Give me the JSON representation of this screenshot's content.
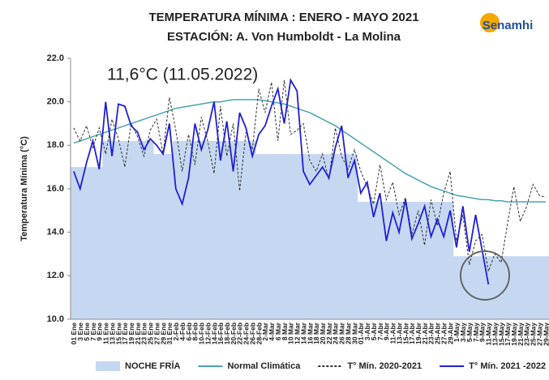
{
  "chart_data": {
    "type": "line",
    "title": "TEMPERATURA MÍNIMA : ENERO - MAYO 2021",
    "subtitle": "ESTACIÓN: A. Von Humboldt - La Molina",
    "y_label": "Temperatura Mínima (°C)",
    "annotation": "11,6°C (11.05.2022)",
    "logo": "Senamhi",
    "categories": [
      "01 Ene",
      "3 Ene",
      "5 Ene",
      "7 Ene",
      "9 Ene",
      "11 Ene",
      "13 Ene",
      "15 Ene",
      "17 Ene",
      "19 Ene",
      "21 Ene",
      "23 Ene",
      "25 Ene",
      "27 Ene",
      "29 Ene",
      "31 Ene",
      "2-Feb",
      "4-Feb",
      "6-Feb",
      "8-Feb",
      "10-Feb",
      "12-Feb",
      "14-Feb",
      "16-Feb",
      "18-Feb",
      "20-Feb",
      "22-Feb",
      "24-Feb",
      "26-Feb",
      "28-Feb",
      "2-Mar",
      "4-Mar",
      "6 Mar",
      "8 Mar",
      "10 Mar",
      "12 Mar",
      "14 Mar",
      "16 Mar",
      "18 Mar",
      "20 Mar",
      "22 Mar",
      "24 Mar",
      "26 Mar",
      "28 Mar",
      "30 Mar",
      "01-Abr",
      "3-Abr",
      "5-Abr",
      "7-Abr",
      "9-Abr",
      "11-Abr",
      "13-Abr",
      "15-Abr",
      "17-Abr",
      "19-Abr",
      "21-Abr",
      "23-Abr",
      "25-Abr",
      "27-Abr",
      "29-Abr",
      "1-May",
      "3-May",
      "5-May",
      "7-May",
      "9-May",
      "11-May",
      "13-May",
      "15-May",
      "17-May",
      "19-May",
      "21-May",
      "23-May",
      "25-May",
      "27-May",
      "29-May"
    ],
    "series": [
      {
        "name": "NOCHE FRÍA",
        "kind": "area",
        "color": "#c6d8f1",
        "values": [
          17.0,
          17.0,
          17.0,
          17.0,
          17.0,
          18.2,
          18.2,
          18.2,
          18.2,
          18.2,
          18.2,
          18.2,
          18.2,
          17.6,
          17.6,
          17.6,
          18.2,
          18.2,
          18.2,
          18.2,
          18.2,
          18.2,
          18.2,
          18.2,
          18.2,
          18.2,
          18.2,
          18.2,
          18.2,
          17.6,
          17.6,
          17.6,
          17.6,
          17.6,
          17.6,
          17.6,
          17.6,
          17.6,
          17.6,
          17.6,
          17.6,
          17.6,
          17.6,
          17.6,
          17.6,
          15.4,
          15.4,
          15.4,
          15.4,
          15.4,
          15.4,
          15.4,
          15.4,
          15.4,
          15.4,
          15.4,
          15.4,
          15.4,
          15.4,
          15.4,
          12.9,
          12.9,
          12.9,
          12.9,
          12.9,
          12.9,
          12.9,
          12.9,
          12.9,
          12.9,
          12.9,
          12.9,
          12.9,
          12.9,
          12.9
        ]
      },
      {
        "name": "Normal Climática",
        "kind": "line",
        "color": "#4aa3b3",
        "values": [
          18.1,
          18.2,
          18.3,
          18.4,
          18.5,
          18.6,
          18.7,
          18.8,
          18.9,
          19.0,
          19.1,
          19.2,
          19.3,
          19.4,
          19.5,
          19.6,
          19.7,
          19.75,
          19.8,
          19.85,
          19.9,
          19.95,
          20.0,
          20.0,
          20.05,
          20.1,
          20.1,
          20.1,
          20.1,
          20.1,
          20.05,
          20.0,
          19.95,
          19.9,
          19.8,
          19.7,
          19.6,
          19.5,
          19.35,
          19.2,
          19.05,
          18.9,
          18.7,
          18.5,
          18.3,
          18.1,
          17.9,
          17.7,
          17.5,
          17.3,
          17.1,
          16.9,
          16.7,
          16.55,
          16.4,
          16.25,
          16.1,
          16.0,
          15.9,
          15.8,
          15.7,
          15.65,
          15.6,
          15.55,
          15.5,
          15.5,
          15.45,
          15.45,
          15.4,
          15.4,
          15.4,
          15.4,
          15.4,
          15.4,
          15.4
        ]
      },
      {
        "name": "T° Mín. 2020-2021",
        "kind": "dashed",
        "color": "#333333",
        "values": [
          18.8,
          18.2,
          18.9,
          17.9,
          18.8,
          17.6,
          19.2,
          18.3,
          17.0,
          19.0,
          18.4,
          17.5,
          18.7,
          19.2,
          17.6,
          20.2,
          18.7,
          16.8,
          18.5,
          17.1,
          19.3,
          18.2,
          16.7,
          19.8,
          17.5,
          19.0,
          15.9,
          18.6,
          17.8,
          20.6,
          19.5,
          20.9,
          18.2,
          21.0,
          18.5,
          18.7,
          19.0,
          17.3,
          16.8,
          17.6,
          16.4,
          18.8,
          17.5,
          16.9,
          17.8,
          16.8,
          16.1,
          15.3,
          17.1,
          15.5,
          16.3,
          14.8,
          15.6,
          13.9,
          15.0,
          13.4,
          15.5,
          14.3,
          15.8,
          16.8,
          13.6,
          14.8,
          12.5,
          13.6,
          13.9,
          12.2,
          13.0,
          12.6,
          14.4,
          16.1,
          14.5,
          15.2,
          16.2,
          15.7,
          15.6
        ]
      },
      {
        "name": "T° Mín. 2021 -2022",
        "kind": "line",
        "color": "#1f1fd6",
        "values": [
          16.8,
          16.0,
          17.2,
          18.2,
          16.9,
          20.0,
          17.5,
          19.9,
          19.8,
          18.9,
          18.6,
          17.8,
          18.3,
          18.0,
          17.6,
          19.0,
          16.0,
          15.3,
          16.5,
          19.0,
          17.8,
          18.7,
          20.0,
          17.3,
          19.1,
          16.8,
          19.5,
          18.8,
          17.5,
          18.5,
          18.9,
          19.8,
          20.6,
          19.0,
          21.0,
          20.5,
          16.8,
          16.2,
          16.6,
          17.0,
          16.5,
          17.9,
          18.9,
          16.5,
          17.3,
          15.8,
          16.3,
          14.7,
          15.8,
          13.6,
          14.9,
          14.0,
          15.5,
          13.7,
          14.4,
          15.2,
          13.8,
          14.6,
          13.8,
          15.0,
          13.3,
          15.2,
          13.1,
          14.8,
          13.2,
          11.6,
          null,
          null,
          null,
          null,
          null,
          null,
          null,
          null,
          null
        ]
      }
    ],
    "ylim": [
      10,
      22
    ],
    "yticks": [
      {
        "value": 10,
        "label": "10.0"
      },
      {
        "value": 12,
        "label": "12.0"
      },
      {
        "value": 14,
        "label": "14.0"
      },
      {
        "value": 16,
        "label": "16.0"
      },
      {
        "value": 18,
        "label": "18.0"
      },
      {
        "value": 20,
        "label": "20.0"
      },
      {
        "value": 22,
        "label": "22.0"
      }
    ],
    "grid": false,
    "legend": "bottom"
  }
}
